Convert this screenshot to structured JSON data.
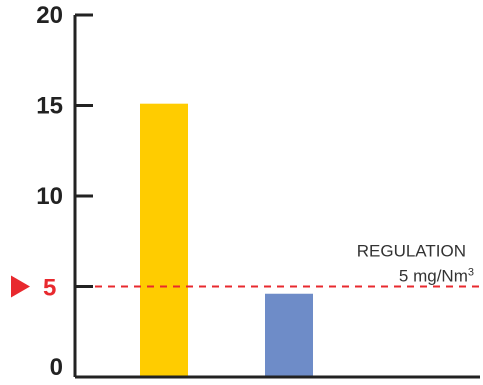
{
  "chart_data": {
    "type": "bar",
    "categories": [
      "",
      ""
    ],
    "values": [
      15.1,
      4.6
    ],
    "bar_colors": [
      "#FFCC00",
      "#6E8CC8"
    ],
    "title": "",
    "xlabel": "",
    "ylabel": "",
    "ylim": [
      0,
      20
    ],
    "yticks": [
      0,
      5,
      10,
      15,
      20
    ],
    "ytick_labels": [
      "0",
      "5",
      "10",
      "15",
      "20"
    ],
    "grid": false,
    "reference_line": {
      "value": 5,
      "label": "5",
      "color": "#E8292E",
      "style": "dashed",
      "annotation_line1": "REGULATION",
      "annotation_line2": "5 mg/Nm",
      "annotation_superscript": "3"
    }
  },
  "colors": {
    "axis": "#222222",
    "text": "#222222",
    "annotation_text": "#333333",
    "reference": "#E8292E"
  }
}
